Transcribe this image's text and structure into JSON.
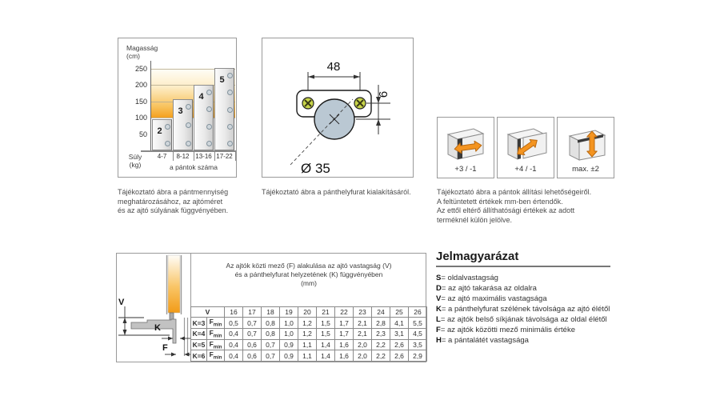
{
  "panels": {
    "chart": {
      "caption_lines": [
        "Tájékoztató ábra a pántmennyiség",
        "meghatározásához, az ajtóméret",
        "és az ajtó súlyának függvényében."
      ]
    },
    "drill": {
      "caption_lines": [
        "Tájékoztató ábra a pánthelyfurat kialakításáról."
      ]
    },
    "adjust": {
      "boxes": [
        {
          "label": "+3 / -1",
          "direction": "side"
        },
        {
          "label": "+4 / -1",
          "direction": "depth"
        },
        {
          "label": "max. ±2",
          "direction": "height"
        }
      ],
      "caption_lines": [
        "Tájékoztató ábra a pántok állítási lehetőségeiről.",
        "A feltüntetett értékek mm-ben értendők.",
        "Az ettől eltérő állíthatósági értékek az adott",
        "terméknél külön jelölve."
      ]
    }
  },
  "chart_data": {
    "type": "bar",
    "title": "",
    "ylabel_lines": [
      "Magasság",
      "(cm)"
    ],
    "xlabel_lines": [
      "Súly",
      "(kg)"
    ],
    "x_axis_note": "a pántok száma",
    "yticks": [
      "250",
      "200",
      "150",
      "100",
      "50"
    ],
    "ylim": [
      0,
      250
    ],
    "categories": [
      "4-7",
      "8-12",
      "13-16",
      "17-22"
    ],
    "values": [
      95,
      155,
      200,
      250
    ],
    "bar_labels": [
      "2",
      "3",
      "4",
      "5"
    ],
    "hinge_dots": [
      2,
      3,
      4,
      5
    ],
    "colors": {
      "gradient_top": "#fffef9",
      "gradient_bottom": "#f4a01e",
      "bar_fill": "#e9e9e9"
    }
  },
  "drill_drawing": {
    "dim_width": "48",
    "dim_offset": "6",
    "dim_diameter": "Ø 35",
    "colors": {
      "cup": "#bac8d3",
      "screw": "#c8d54a"
    }
  },
  "bottom_panel": {
    "diagram_labels": {
      "v": "V",
      "k": "K",
      "f": "F"
    },
    "title_lines": [
      "Az ajtók közti mező (F) alakulása az ajtó vastagság (V)",
      "és a pánthelyfurat helyzetének (K) függvényében",
      "(mm)"
    ],
    "table": {
      "corner_label": "V",
      "columns": [
        "16",
        "17",
        "18",
        "19",
        "20",
        "21",
        "22",
        "23",
        "24",
        "25",
        "26"
      ],
      "f_label": {
        "base": "F",
        "sub": "min"
      },
      "rows": [
        {
          "label": "K=3",
          "values": [
            "0,5",
            "0,7",
            "0,8",
            "1,0",
            "1,2",
            "1,5",
            "1,7",
            "2,1",
            "2,8",
            "4,1",
            "5,5"
          ]
        },
        {
          "label": "K=4",
          "values": [
            "0,4",
            "0,7",
            "0,8",
            "1,0",
            "1,2",
            "1,5",
            "1,7",
            "2,1",
            "2,3",
            "3,1",
            "4,5"
          ]
        },
        {
          "label": "K=5",
          "values": [
            "0,4",
            "0,6",
            "0,7",
            "0,9",
            "1,1",
            "1,4",
            "1,6",
            "2,0",
            "2,2",
            "2,6",
            "3,5"
          ]
        },
        {
          "label": "K=6",
          "values": [
            "0,4",
            "0,6",
            "0,7",
            "0,9",
            "1,1",
            "1,4",
            "1,6",
            "2,0",
            "2,2",
            "2,6",
            "2,9"
          ]
        }
      ]
    }
  },
  "legend": {
    "title": "Jelmagyarázat",
    "eq": "=",
    "items": [
      {
        "key": "S",
        "text": "oldalvastagság"
      },
      {
        "key": "D",
        "text": "az ajtó takarása az oldalra"
      },
      {
        "key": "V",
        "text": "az ajtó maximális vastagsága"
      },
      {
        "key": "K",
        "text": "a pánthelyfurat szélének távolsága az ajtó élétől"
      },
      {
        "key": "L",
        "text": "az ajtók belső síkjának távolsága az oldal élétől"
      },
      {
        "key": "F",
        "text": "az ajtók közötti mező minimális értéke"
      },
      {
        "key": "H",
        "text": "a pántalátét vastagsága"
      }
    ]
  }
}
